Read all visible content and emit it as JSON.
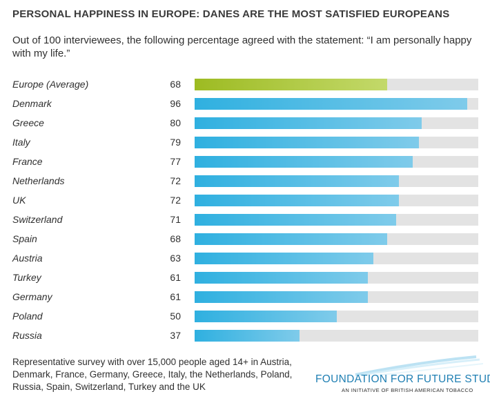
{
  "header": {
    "title": "PERSONAL HAPPINESS IN EUROPE: DANES ARE THE MOST SATISFIED EUROPEANS",
    "subtitle": "Out of 100 interviewees, the following percentage agreed with the statement: “I am personally happy with my life.”"
  },
  "chart_data": {
    "type": "bar",
    "orientation": "horizontal",
    "title": "PERSONAL HAPPINESS IN EUROPE: DANES ARE THE MOST SATISFIED EUROPEANS",
    "xlabel": "",
    "ylabel": "",
    "xlim": [
      0,
      100
    ],
    "grid": false,
    "categories": [
      "Europe (Average)",
      "Denmark",
      "Greece",
      "Italy",
      "France",
      "Netherlands",
      "UK",
      "Switzerland",
      "Spain",
      "Austria",
      "Turkey",
      "Germany",
      "Poland",
      "Russia"
    ],
    "values": [
      68,
      96,
      80,
      79,
      77,
      72,
      72,
      71,
      68,
      63,
      61,
      61,
      50,
      37
    ],
    "colors": {
      "average": "#9dbb22",
      "country": "#2fb0e0",
      "track": "#e3e3e3"
    }
  },
  "footer": {
    "note": "Representative survey with over 15,000 people aged 14+ in Austria, Denmark, France, Germany, Greece, Italy, the Netherlands, Poland, Russia, Spain, Switzerland, Turkey and the UK",
    "logo_main": "FOUNDATION FOR FUTURE STUDIES",
    "logo_sub": "AN INITIATIVE OF BRITISH AMERICAN TOBACCO",
    "logo_color": "#1f7fb3"
  }
}
